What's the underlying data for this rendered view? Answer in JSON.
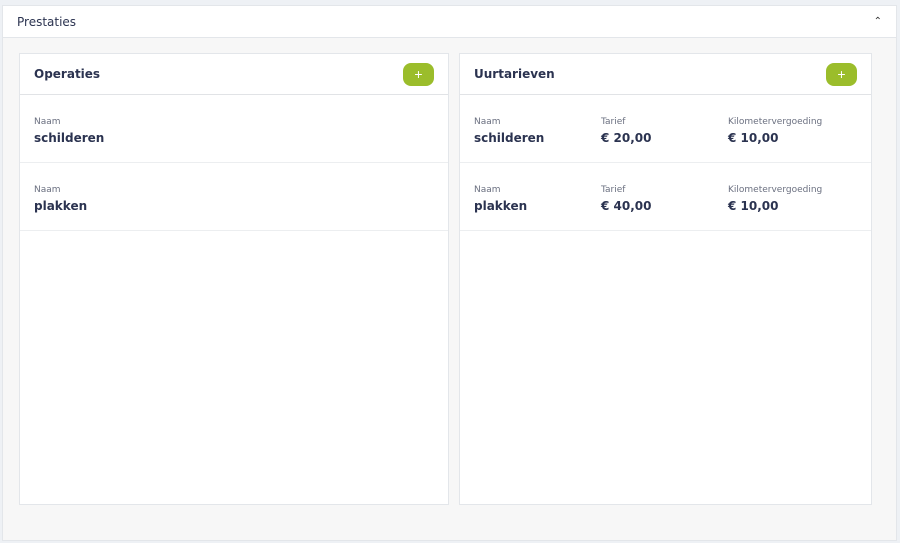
{
  "section": {
    "title": "Prestaties",
    "collapse_icon": "chevron-up-icon"
  },
  "operaties": {
    "title": "Operaties",
    "add_label": "+",
    "rows": [
      {
        "naam_label": "Naam",
        "naam": "schilderen"
      },
      {
        "naam_label": "Naam",
        "naam": "plakken"
      }
    ]
  },
  "uurtarieven": {
    "title": "Uurtarieven",
    "add_label": "+",
    "rows": [
      {
        "naam_label": "Naam",
        "naam": "schilderen",
        "tarief_label": "Tarief",
        "tarief": "€ 20,00",
        "km_label": "Kilometervergoeding",
        "km": "€ 10,00"
      },
      {
        "naam_label": "Naam",
        "naam": "plakken",
        "tarief_label": "Tarief",
        "tarief": "€ 40,00",
        "km_label": "Kilometervergoeding",
        "km": "€ 10,00"
      }
    ]
  },
  "colors": {
    "accent": "#9bbd2b",
    "text": "#2b3350"
  }
}
